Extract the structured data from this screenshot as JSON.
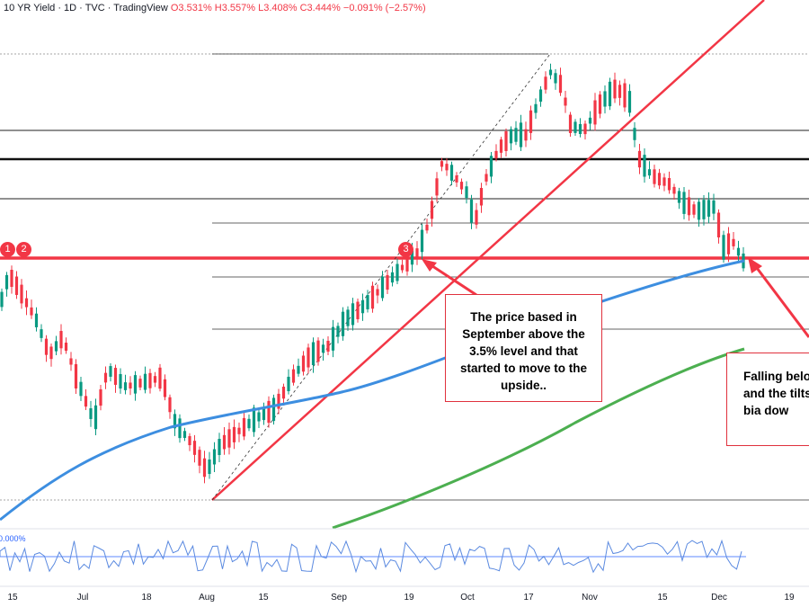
{
  "header": {
    "title": "10 YR Yield · 1D · TVC · TradingView",
    "ohlc": "O3.531% H3.557% L3.408% C3.444% −0.091% (−2.57%)"
  },
  "annotations": [
    "The price based in September above the 3.5% level and that started to move to the upside..",
    "Falling belo MA and the tilts the bia dow"
  ],
  "badges": [
    "1",
    "2",
    "3"
  ],
  "indicator": {
    "label": "0.000%"
  },
  "colors": {
    "up": "#089981",
    "down": "#f23645",
    "ma_blue": "#3d8ee0",
    "ma_green": "#4caf50",
    "red_line": "#f23645",
    "ann_border": "#e0313d"
  },
  "chart_data": {
    "type": "candlestick",
    "title": "10 YR Yield · 1D · TVC",
    "x_ticks": [
      "15",
      "Jul",
      "18",
      "Aug",
      "15",
      "Sep",
      "19",
      "Oct",
      "17",
      "Nov",
      "15",
      "Dec",
      "19"
    ],
    "levels": [
      "3.50%"
    ],
    "series": [
      {
        "name": "",
        "style": "blue moving average"
      },
      {
        "name": "",
        "style": "green moving average"
      }
    ],
    "grid": false,
    "legend": "none"
  }
}
